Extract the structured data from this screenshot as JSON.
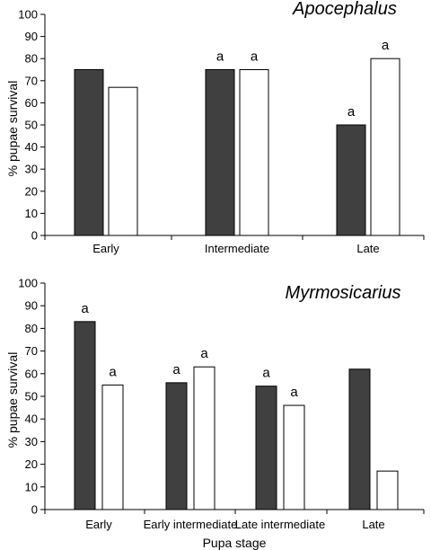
{
  "chart_data": [
    {
      "type": "bar",
      "title": "Apocephalus",
      "ylabel": "% pupae survival",
      "xlabel": "",
      "ylim": [
        0,
        100
      ],
      "yticks": [
        0,
        10,
        20,
        30,
        40,
        50,
        60,
        70,
        80,
        90,
        100
      ],
      "categories": [
        "Early",
        "Intermediate",
        "Late"
      ],
      "series": [
        {
          "fill": "#404040",
          "values": [
            75,
            75,
            50
          ],
          "labels": [
            "",
            "a",
            "a"
          ]
        },
        {
          "fill": "#ffffff",
          "values": [
            67,
            75,
            80
          ],
          "labels": [
            "",
            "a",
            "a"
          ]
        }
      ]
    },
    {
      "type": "bar",
      "title": "Myrmosicarius",
      "ylabel": "% pupae survival",
      "xlabel": "Pupa stage",
      "ylim": [
        0,
        100
      ],
      "yticks": [
        0,
        10,
        20,
        30,
        40,
        50,
        60,
        70,
        80,
        90,
        100
      ],
      "categories": [
        "Early",
        "Early intermediate",
        "Late intermediate",
        "Late"
      ],
      "series": [
        {
          "fill": "#404040",
          "values": [
            83,
            56,
            54.5,
            62
          ],
          "labels": [
            "a",
            "a",
            "a",
            ""
          ]
        },
        {
          "fill": "#ffffff",
          "values": [
            55,
            63,
            46,
            17
          ],
          "labels": [
            "a",
            "a",
            "a",
            ""
          ]
        }
      ]
    }
  ]
}
